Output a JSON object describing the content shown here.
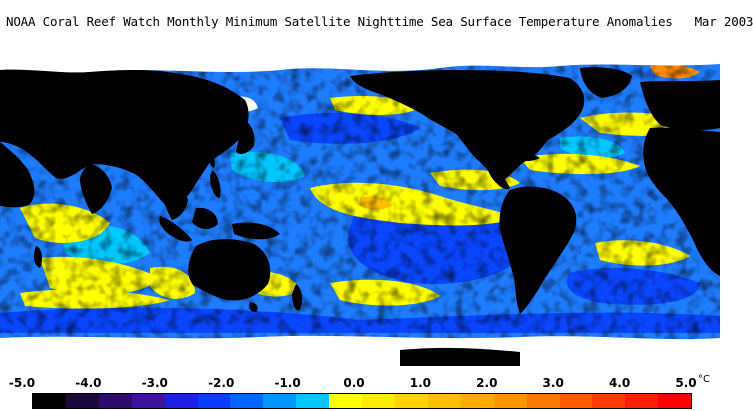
{
  "title": "NOAA Coral Reef Watch Monthly Minimum Satellite Nighttime Sea Surface Temperature Anomalies   Mar 2003",
  "colorbar": {
    "labels": [
      "-5.0",
      "-4.0",
      "-3.0",
      "-2.0",
      "-1.0",
      "0.0",
      "1.0",
      "2.0",
      "3.0",
      "4.0",
      "5.0"
    ],
    "unit": "°C",
    "colors": [
      "#000000",
      "#1a0a3c",
      "#2e0c6e",
      "#3c149e",
      "#1e1ee6",
      "#0a3cff",
      "#0064ff",
      "#0096ff",
      "#00c8ff",
      "#ffff00",
      "#ffeb00",
      "#ffd200",
      "#ffbe00",
      "#ffaa00",
      "#ff9600",
      "#ff7800",
      "#ff5a00",
      "#ff3c00",
      "#ff1e00",
      "#ff0000"
    ]
  },
  "palette": {
    "land": "#000000",
    "ice": "#ffffff",
    "ocean_base": "#1e7cff",
    "cool": "#0a46ff",
    "cyan": "#00c8ff",
    "warm": "#ffff00",
    "hot": "#ff8c00"
  }
}
